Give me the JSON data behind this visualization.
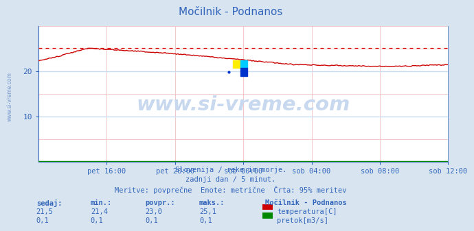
{
  "title": "Močilnik - Podnanos",
  "bg_color": "#d8e4f0",
  "plot_bg_color": "#ffffff",
  "x_tick_labels": [
    "pet 16:00",
    "pet 20:00",
    "sob 00:00",
    "sob 04:00",
    "sob 08:00",
    "sob 12:00"
  ],
  "ylim": [
    0,
    30
  ],
  "yticks": [
    10,
    20
  ],
  "temp_color": "#cc0000",
  "flow_color": "#008800",
  "dashed_color": "#dd0000",
  "dashed_value": 25.1,
  "subtitle1": "Slovenija / reke in morje.",
  "subtitle2": "zadnji dan / 5 minut.",
  "subtitle3": "Meritve: povprečne  Enote: metrične  Črta: 95% meritev",
  "subtitle_color": "#3366bb",
  "legend_title": "Močilnik - Podnanos",
  "legend_items": [
    "temperatura[C]",
    "pretok[m3/s]"
  ],
  "legend_colors": [
    "#cc0000",
    "#008800"
  ],
  "stats_headers": [
    "sedaj:",
    "min.:",
    "povpr.:",
    "maks.:"
  ],
  "stats_temp": [
    "21,5",
    "21,4",
    "23,0",
    "25,1"
  ],
  "stats_flow": [
    "0,1",
    "0,1",
    "0,1",
    "0,1"
  ],
  "stats_color": "#3366bb",
  "title_color": "#3366bb",
  "axis_color": "#3366bb",
  "watermark": "www.si-vreme.com",
  "watermark_color": "#c8d8ee",
  "side_watermark_color": "#7799cc",
  "grid_minor_color": "#f0c8c8",
  "grid_major_color": "#c8ddf0",
  "spine_color": "#3366bb"
}
